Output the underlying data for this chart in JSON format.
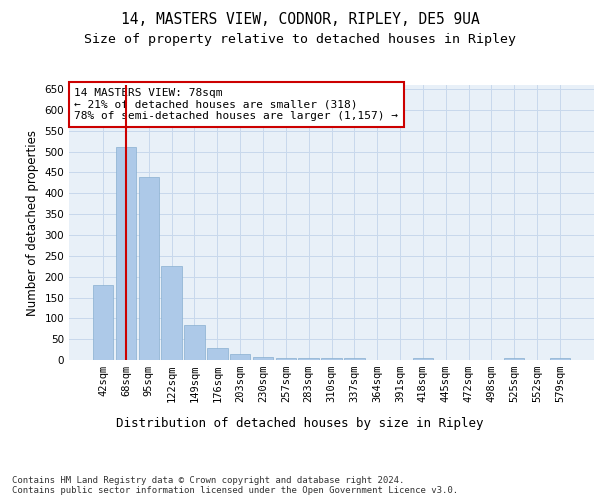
{
  "title1": "14, MASTERS VIEW, CODNOR, RIPLEY, DE5 9UA",
  "title2": "Size of property relative to detached houses in Ripley",
  "xlabel": "Distribution of detached houses by size in Ripley",
  "ylabel": "Number of detached properties",
  "categories": [
    "42sqm",
    "68sqm",
    "95sqm",
    "122sqm",
    "149sqm",
    "176sqm",
    "203sqm",
    "230sqm",
    "257sqm",
    "283sqm",
    "310sqm",
    "337sqm",
    "364sqm",
    "391sqm",
    "418sqm",
    "445sqm",
    "472sqm",
    "498sqm",
    "525sqm",
    "552sqm",
    "579sqm"
  ],
  "values": [
    180,
    510,
    440,
    225,
    85,
    28,
    15,
    8,
    6,
    6,
    5,
    5,
    0,
    0,
    5,
    0,
    0,
    0,
    5,
    0,
    5
  ],
  "bar_color": "#adc9e8",
  "bar_edge_color": "#89afd0",
  "grid_color": "#c8d8ec",
  "background_color": "#e8f0f8",
  "annotation_text": "14 MASTERS VIEW: 78sqm\n← 21% of detached houses are smaller (318)\n78% of semi-detached houses are larger (1,157) →",
  "annotation_box_color": "#ffffff",
  "annotation_box_edge": "#cc0000",
  "vline_x": 1,
  "vline_color": "#cc0000",
  "ylim": [
    0,
    660
  ],
  "yticks": [
    0,
    50,
    100,
    150,
    200,
    250,
    300,
    350,
    400,
    450,
    500,
    550,
    600,
    650
  ],
  "footer_text": "Contains HM Land Registry data © Crown copyright and database right 2024.\nContains public sector information licensed under the Open Government Licence v3.0.",
  "title1_fontsize": 10.5,
  "title2_fontsize": 9.5,
  "xlabel_fontsize": 9,
  "ylabel_fontsize": 8.5,
  "tick_fontsize": 7.5,
  "annotation_fontsize": 8,
  "footer_fontsize": 6.5
}
